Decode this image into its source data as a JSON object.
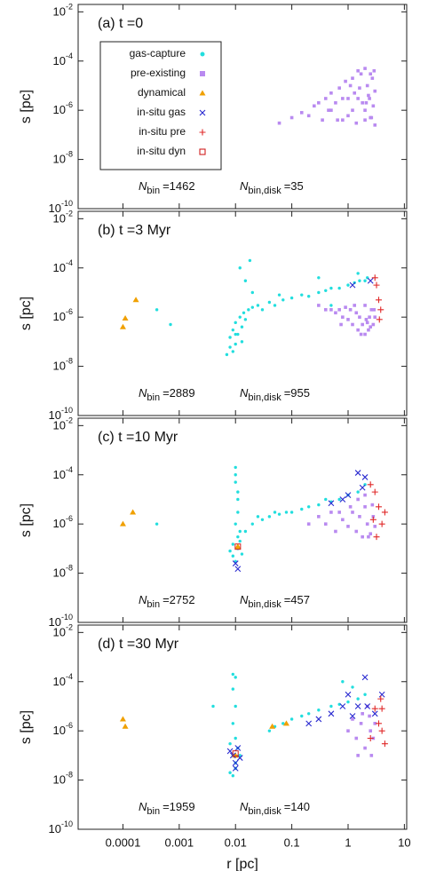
{
  "chart_data": [
    {
      "type": "scatter",
      "title": "(a) t =0",
      "ylabel": "s [pc]",
      "log_x": true,
      "log_y": true,
      "xlim": [
        1.6e-05,
        11
      ],
      "ylim": [
        1e-10,
        0.02
      ],
      "xticks": [
        0.0001,
        0.001,
        0.01,
        0.1,
        1,
        10
      ],
      "yticks": [
        {
          "value": 1e-10,
          "label": "10",
          "exponent": "-10"
        },
        {
          "value": 1e-08,
          "label": "10",
          "exponent": "-8"
        },
        {
          "value": 1e-06,
          "label": "10",
          "exponent": "-6"
        },
        {
          "value": 0.0001,
          "label": "10",
          "exponent": "-4"
        },
        {
          "value": 0.01,
          "label": "10",
          "exponent": "-2"
        }
      ],
      "legend": "upper left",
      "annotations": [
        {
          "symbol": "N",
          "subscript": "bin",
          "text": "=1462"
        },
        {
          "symbol": "N",
          "subscript": "bin,disk",
          "text": "=35"
        }
      ],
      "series": [
        {
          "name": "gas-capture",
          "color": "#22dede",
          "marker": "circle",
          "x": [],
          "y": []
        },
        {
          "name": "pre-existing",
          "color": "#b98af0",
          "marker": "square",
          "x": [
            0.06,
            0.1,
            0.15,
            0.2,
            0.25,
            0.3,
            0.35,
            0.4,
            0.45,
            0.5,
            0.5,
            0.6,
            0.7,
            0.8,
            0.8,
            0.9,
            1.0,
            1.0,
            1.1,
            1.2,
            1.2,
            1.4,
            1.5,
            1.5,
            1.6,
            1.8,
            2.0,
            2.0,
            2.0,
            2.2,
            2.4,
            2.5,
            2.5,
            2.6,
            2.7,
            2.8,
            3.0,
            3.0,
            1.3,
            1.7,
            2.3,
            2.9,
            0.65,
            2.1
          ],
          "y": [
            3e-07,
            5e-07,
            8e-07,
            6e-07,
            1.5e-06,
            2e-06,
            4e-07,
            3e-06,
            1e-06,
            1e-06,
            5e-06,
            2e-06,
            8e-06,
            4e-07,
            3e-06,
            1.5e-05,
            3e-06,
            6e-07,
            1e-05,
            2e-05,
            1e-06,
            3e-07,
            4e-05,
            3e-06,
            8e-06,
            2e-06,
            5e-05,
            4e-07,
            1e-06,
            1e-05,
            3e-06,
            3e-05,
            5e-07,
            5e-07,
            2e-05,
            1.5e-06,
            6e-06,
            2.5e-07,
            5e-06,
            3e-05,
            4e-06,
            4e-05,
            4e-07,
            2e-06
          ]
        },
        {
          "name": "dynamical",
          "color": "#f0a000",
          "marker": "triangle",
          "x": [],
          "y": []
        },
        {
          "name": "in-situ gas",
          "color": "#2a2ad0",
          "marker": "x",
          "x": [],
          "y": []
        },
        {
          "name": "in-situ pre",
          "color": "#e02828",
          "marker": "plus",
          "x": [],
          "y": []
        },
        {
          "name": "in-situ dyn",
          "color": "#d02020",
          "marker": "open-square",
          "x": [],
          "y": []
        }
      ]
    },
    {
      "type": "scatter",
      "title": "(b) t =3 Myr",
      "ylabel": "s [pc]",
      "log_x": true,
      "log_y": true,
      "xlim": [
        1.6e-05,
        11
      ],
      "ylim": [
        1e-10,
        0.02
      ],
      "xticks": [
        0.0001,
        0.001,
        0.01,
        0.1,
        1,
        10
      ],
      "yticks": [
        {
          "value": 1e-10,
          "label": "10",
          "exponent": "-10"
        },
        {
          "value": 1e-08,
          "label": "10",
          "exponent": "-8"
        },
        {
          "value": 1e-06,
          "label": "10",
          "exponent": "-6"
        },
        {
          "value": 0.0001,
          "label": "10",
          "exponent": "-4"
        },
        {
          "value": 0.01,
          "label": "10",
          "exponent": "-2"
        }
      ],
      "annotations": [
        {
          "symbol": "N",
          "subscript": "bin",
          "text": "=2889"
        },
        {
          "symbol": "N",
          "subscript": "bin,disk",
          "text": "=955"
        }
      ],
      "series": [
        {
          "color": "#22dede",
          "marker": "circle",
          "x": [
            0.0004,
            0.0007,
            0.007,
            0.008,
            0.008,
            0.009,
            0.009,
            0.01,
            0.01,
            0.011,
            0.012,
            0.013,
            0.014,
            0.015,
            0.017,
            0.02,
            0.025,
            0.03,
            0.04,
            0.05,
            0.07,
            0.1,
            0.15,
            0.2,
            0.3,
            0.4,
            0.5,
            0.7,
            1.0,
            1.3,
            1.6,
            2.0,
            2.2,
            0.012,
            0.015,
            0.02,
            0.018,
            0.06,
            0.5,
            1.5,
            0.3,
            0.01,
            0.013
          ],
          "y": [
            2e-06,
            5e-07,
            3e-08,
            6e-08,
            1.5e-07,
            4e-08,
            3e-07,
            8e-08,
            6e-07,
            2e-07,
            1e-06,
            4e-07,
            1.5e-06,
            8e-07,
            2e-06,
            2.5e-06,
            3e-06,
            2e-06,
            4e-06,
            3e-06,
            5e-06,
            6e-06,
            8e-06,
            7e-06,
            1e-05,
            1.2e-05,
            1.5e-05,
            1.5e-05,
            2e-05,
            2.5e-05,
            3e-05,
            3e-05,
            4e-05,
            0.0001,
            3e-05,
            1e-05,
            0.0002,
            8e-06,
            3e-06,
            6e-05,
            4e-05,
            2e-07,
            1e-07
          ]
        },
        {
          "color": "#b98af0",
          "marker": "square",
          "x": [
            0.3,
            0.4,
            0.5,
            0.6,
            0.7,
            0.8,
            0.9,
            1.0,
            1.1,
            1.2,
            1.4,
            1.5,
            1.6,
            1.8,
            2.0,
            2.0,
            2.2,
            2.4,
            2.5,
            2.6,
            2.8,
            3.0,
            1.3,
            1.7,
            2.3,
            2.9,
            0.75,
            2.1
          ],
          "y": [
            3e-06,
            2e-06,
            2e-06,
            1.5e-06,
            2e-06,
            1e-06,
            2.5e-06,
            8e-07,
            2e-06,
            5e-07,
            1.5e-06,
            3e-07,
            1e-06,
            5e-07,
            2e-07,
            3e-06,
            6e-07,
            1e-06,
            4e-07,
            2e-06,
            5e-07,
            1e-06,
            3e-06,
            2e-07,
            3e-07,
            2e-06,
            5e-07,
            8e-07
          ]
        },
        {
          "color": "#f0a000",
          "marker": "triangle",
          "x": [
            0.0001,
            0.00011,
            0.00017
          ],
          "y": [
            4e-07,
            9e-07,
            5e-06
          ]
        },
        {
          "color": "#2a2ad0",
          "marker": "x",
          "x": [
            1.2,
            2.5
          ],
          "y": [
            2e-05,
            3e-05
          ]
        },
        {
          "color": "#e02828",
          "marker": "plus",
          "x": [
            3.0,
            3.2,
            3.5,
            3.8,
            3.6
          ],
          "y": [
            4e-05,
            2e-05,
            5e-06,
            2e-06,
            8e-07
          ]
        },
        {
          "color": "#d02020",
          "marker": "open-square",
          "x": [],
          "y": []
        }
      ]
    },
    {
      "type": "scatter",
      "title": "(c) t =10 Myr",
      "ylabel": "s [pc]",
      "log_x": true,
      "log_y": true,
      "xlim": [
        1.6e-05,
        11
      ],
      "ylim": [
        1e-10,
        0.02
      ],
      "xticks": [
        0.0001,
        0.001,
        0.01,
        0.1,
        1,
        10
      ],
      "yticks": [
        {
          "value": 1e-10,
          "label": "10",
          "exponent": "-10"
        },
        {
          "value": 1e-08,
          "label": "10",
          "exponent": "-8"
        },
        {
          "value": 1e-06,
          "label": "10",
          "exponent": "-6"
        },
        {
          "value": 0.0001,
          "label": "10",
          "exponent": "-4"
        },
        {
          "value": 0.01,
          "label": "10",
          "exponent": "-2"
        }
      ],
      "annotations": [
        {
          "symbol": "N",
          "subscript": "bin",
          "text": "=2752"
        },
        {
          "symbol": "N",
          "subscript": "bin,disk",
          "text": "=457"
        }
      ],
      "series": [
        {
          "color": "#22dede",
          "marker": "circle",
          "x": [
            0.0004,
            0.01,
            0.01,
            0.011,
            0.011,
            0.01,
            0.012,
            0.011,
            0.009,
            0.008,
            0.009,
            0.01,
            0.011,
            0.012,
            0.013,
            0.015,
            0.02,
            0.03,
            0.04,
            0.06,
            0.08,
            0.1,
            0.15,
            0.2,
            0.3,
            0.5,
            0.7,
            1.0,
            1.5,
            2.0,
            0.01,
            0.011,
            0.025,
            0.05,
            0.4
          ],
          "y": [
            1e-06,
            0.0002,
            5e-05,
            1e-05,
            3e-06,
            1e-06,
            5e-07,
            3e-07,
            1.5e-07,
            8e-08,
            5e-08,
            3e-08,
            1e-07,
            2e-07,
            6e-08,
            5e-07,
            1e-06,
            1.5e-06,
            2e-06,
            2.5e-06,
            3e-06,
            3e-06,
            4e-06,
            5e-06,
            6e-06,
            8e-06,
            1e-05,
            1.5e-05,
            2e-05,
            4e-05,
            0.0001,
            2e-05,
            2e-06,
            3e-06,
            1e-05
          ]
        },
        {
          "color": "#b98af0",
          "marker": "square",
          "x": [
            0.2,
            0.3,
            0.4,
            0.5,
            0.6,
            0.8,
            1.0,
            1.2,
            1.4,
            1.6,
            1.8,
            2.0,
            2.2,
            2.5,
            2.8,
            3.0,
            1.1,
            1.5,
            2.3,
            2.7,
            0.7,
            2.0
          ],
          "y": [
            1e-06,
            2e-06,
            1e-06,
            3e-06,
            5e-07,
            1.5e-06,
            8e-07,
            3e-06,
            5e-07,
            2e-06,
            3e-07,
            5e-06,
            1e-06,
            4e-07,
            2e-06,
            8e-07,
            5e-06,
            1e-05,
            3e-07,
            6e-06,
            3e-06,
            1.5e-05
          ]
        },
        {
          "color": "#f0a000",
          "marker": "triangle",
          "x": [
            0.0001,
            0.00015,
            0.011
          ],
          "y": [
            1e-06,
            3e-06,
            1.2e-07
          ]
        },
        {
          "color": "#2a2ad0",
          "marker": "x",
          "x": [
            0.011,
            0.01,
            0.5,
            0.8,
            1.0,
            1.5,
            2.0,
            1.8
          ],
          "y": [
            1.5e-08,
            2.5e-08,
            7e-06,
            1e-05,
            1.5e-05,
            0.00012,
            8e-05,
            3e-05
          ]
        },
        {
          "color": "#e02828",
          "marker": "plus",
          "x": [
            2.5,
            3.0,
            3.5,
            2.8,
            4.0,
            3.2,
            4.5
          ],
          "y": [
            4e-05,
            2e-05,
            5e-06,
            1.5e-06,
            1e-06,
            3e-07,
            3e-06
          ]
        },
        {
          "color": "#d02020",
          "marker": "open-square",
          "x": [
            0.011
          ],
          "y": [
            1.2e-07
          ]
        }
      ]
    },
    {
      "type": "scatter",
      "title": "(d) t =30 Myr",
      "ylabel": "s [pc]",
      "xlabel": "r [pc]",
      "log_x": true,
      "log_y": true,
      "xlim": [
        1.6e-05,
        11
      ],
      "ylim": [
        1e-10,
        0.02
      ],
      "xticks": [
        0.0001,
        0.001,
        0.01,
        0.1,
        1,
        10
      ],
      "yticks": [
        {
          "value": 1e-10,
          "label": "10",
          "exponent": "-10"
        },
        {
          "value": 1e-08,
          "label": "10",
          "exponent": "-8"
        },
        {
          "value": 1e-06,
          "label": "10",
          "exponent": "-6"
        },
        {
          "value": 0.0001,
          "label": "10",
          "exponent": "-4"
        },
        {
          "value": 0.01,
          "label": "10",
          "exponent": "-2"
        }
      ],
      "annotations": [
        {
          "symbol": "N",
          "subscript": "bin",
          "text": "=1959"
        },
        {
          "symbol": "N",
          "subscript": "bin,disk",
          "text": "=140"
        }
      ],
      "series": [
        {
          "color": "#22dede",
          "marker": "circle",
          "x": [
            0.004,
            0.009,
            0.009,
            0.01,
            0.009,
            0.01,
            0.008,
            0.009,
            0.01,
            0.011,
            0.008,
            0.012,
            0.009,
            0.01,
            0.04,
            0.05,
            0.07,
            0.1,
            0.15,
            0.2,
            0.3,
            0.5,
            0.7,
            1.0,
            1.5,
            2.0,
            0.8,
            1.2,
            0.01
          ],
          "y": [
            1e-05,
            0.0002,
            5e-05,
            1e-05,
            2e-06,
            5e-07,
            3e-07,
            1e-07,
            5e-08,
            2e-07,
            2e-08,
            1e-07,
            1.5e-08,
            3e-08,
            1e-06,
            1.5e-06,
            2e-06,
            3e-06,
            4e-06,
            5e-06,
            7e-06,
            1e-05,
            1.2e-05,
            1.5e-05,
            2e-05,
            3e-05,
            0.0001,
            6e-05,
            0.00015
          ]
        },
        {
          "color": "#b98af0",
          "marker": "square",
          "x": [
            1.0,
            1.2,
            1.5,
            1.8,
            2.0,
            2.2,
            2.5,
            2.8,
            3.0,
            1.4,
            2.4,
            1.7,
            2.6
          ],
          "y": [
            1e-06,
            3e-06,
            1e-07,
            5e-06,
            2e-07,
            1e-05,
            1e-06,
            5e-07,
            2e-06,
            5e-07,
            4e-06,
            2e-06,
            1e-07
          ]
        },
        {
          "color": "#f0a000",
          "marker": "triangle",
          "x": [
            0.0001,
            0.00011,
            0.045,
            0.08,
            0.01
          ],
          "y": [
            3e-06,
            1.5e-06,
            1.5e-06,
            2e-06,
            1e-07
          ]
        },
        {
          "color": "#2a2ad0",
          "marker": "x",
          "x": [
            0.009,
            0.01,
            0.011,
            0.008,
            0.012,
            0.01,
            0.2,
            0.3,
            0.5,
            0.8,
            1.0,
            1.2,
            1.5,
            2.0,
            2.2,
            3.0,
            4.0
          ],
          "y": [
            1e-07,
            5e-08,
            2e-07,
            1.5e-07,
            8e-08,
            3e-08,
            2e-06,
            3e-06,
            5e-06,
            1e-05,
            3e-05,
            4e-06,
            1e-05,
            0.00015,
            1e-05,
            5e-06,
            3e-05
          ]
        },
        {
          "color": "#e02828",
          "marker": "plus",
          "x": [
            3.0,
            3.5,
            4.0,
            4.5,
            2.5,
            4.0,
            3.8
          ],
          "y": [
            8e-06,
            2e-06,
            1e-06,
            3e-07,
            5e-07,
            8e-06,
            2e-05
          ]
        },
        {
          "color": "#d02020",
          "marker": "open-square",
          "x": [
            0.01
          ],
          "y": [
            1.2e-07
          ]
        }
      ]
    }
  ]
}
